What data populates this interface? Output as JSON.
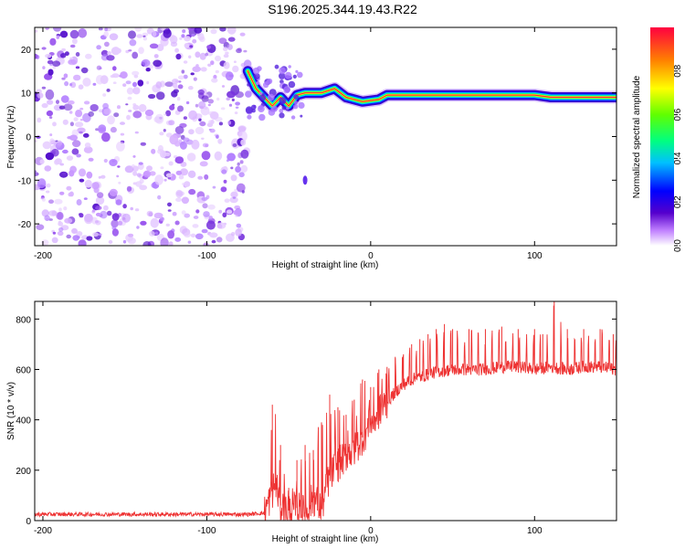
{
  "title": "S196.2025.344.19.43.R22",
  "chart_data": [
    {
      "type": "heatmap",
      "name": "spectrogram",
      "xlabel": "Height of straight line (km)",
      "ylabel": "Frequency (Hz)",
      "xlim": [
        -205,
        150
      ],
      "ylim": [
        -25,
        25
      ],
      "xticks": [
        -200,
        -100,
        0,
        100
      ],
      "yticks": [
        -20,
        -10,
        0,
        10,
        20
      ],
      "colorbar": {
        "label": "Normalized spectral amplitude",
        "range": [
          0,
          1
        ],
        "ticks": [
          0.0,
          0.2,
          0.4,
          0.6,
          0.8
        ]
      },
      "noise_region_x": [
        -205,
        -75
      ],
      "ridge": [
        {
          "x": -75,
          "y": 15
        },
        {
          "x": -70,
          "y": 11
        },
        {
          "x": -65,
          "y": 9
        },
        {
          "x": -60,
          "y": 7
        },
        {
          "x": -55,
          "y": 9
        },
        {
          "x": -50,
          "y": 7
        },
        {
          "x": -45,
          "y": 9.5
        },
        {
          "x": -40,
          "y": 10
        },
        {
          "x": -30,
          "y": 10
        },
        {
          "x": -22,
          "y": 11
        },
        {
          "x": -15,
          "y": 9
        },
        {
          "x": -5,
          "y": 8
        },
        {
          "x": 5,
          "y": 8.5
        },
        {
          "x": 10,
          "y": 9.5
        },
        {
          "x": 60,
          "y": 9.5
        },
        {
          "x": 100,
          "y": 9.5
        },
        {
          "x": 110,
          "y": 9
        },
        {
          "x": 150,
          "y": 9
        }
      ],
      "annotations": [
        {
          "x": -40,
          "y": -10,
          "label": "isolated blob"
        }
      ]
    },
    {
      "type": "line",
      "name": "snr",
      "xlabel": "Height of straight line (km)",
      "ylabel": "SNR (10 * v/v)",
      "xlim": [
        -205,
        150
      ],
      "ylim": [
        0,
        870
      ],
      "xticks": [
        -200,
        -100,
        0,
        100
      ],
      "yticks": [
        0,
        200,
        400,
        600,
        800
      ],
      "color": "#ee3333",
      "x": [
        -205,
        -100,
        -75,
        -65,
        -62,
        -58,
        -55,
        -50,
        -45,
        -40,
        -35,
        -30,
        -25,
        -20,
        -15,
        -10,
        -5,
        0,
        5,
        10,
        15,
        20,
        25,
        30,
        40,
        50,
        60,
        70,
        80,
        90,
        100,
        110,
        120,
        130,
        140,
        150
      ],
      "y": [
        25,
        25,
        25,
        30,
        80,
        150,
        60,
        40,
        50,
        30,
        90,
        50,
        180,
        220,
        260,
        280,
        330,
        380,
        430,
        470,
        510,
        540,
        560,
        570,
        590,
        600,
        600,
        600,
        610,
        610,
        600,
        610,
        600,
        610,
        610,
        600
      ],
      "spikes": [
        {
          "x": -60,
          "y": 460
        },
        {
          "x": -55,
          "y": 300
        },
        {
          "x": -50,
          "y": 130
        },
        {
          "x": -45,
          "y": 240
        },
        {
          "x": -40,
          "y": 300
        },
        {
          "x": -35,
          "y": 280
        },
        {
          "x": -30,
          "y": 390
        },
        {
          "x": -25,
          "y": 500
        },
        {
          "x": -20,
          "y": 450
        },
        {
          "x": -15,
          "y": 420
        },
        {
          "x": -10,
          "y": 480
        },
        {
          "x": -5,
          "y": 560
        },
        {
          "x": 0,
          "y": 530
        },
        {
          "x": 5,
          "y": 600
        },
        {
          "x": 10,
          "y": 610
        },
        {
          "x": 15,
          "y": 650
        },
        {
          "x": 20,
          "y": 660
        },
        {
          "x": 25,
          "y": 700
        },
        {
          "x": 30,
          "y": 720
        },
        {
          "x": 35,
          "y": 740
        },
        {
          "x": 40,
          "y": 760
        },
        {
          "x": 45,
          "y": 780
        },
        {
          "x": 50,
          "y": 760
        },
        {
          "x": 60,
          "y": 760
        },
        {
          "x": 70,
          "y": 760
        },
        {
          "x": 80,
          "y": 770
        },
        {
          "x": 90,
          "y": 760
        },
        {
          "x": 100,
          "y": 760
        },
        {
          "x": 105,
          "y": 740
        },
        {
          "x": 112,
          "y": 870
        },
        {
          "x": 120,
          "y": 760
        },
        {
          "x": 130,
          "y": 760
        },
        {
          "x": 140,
          "y": 760
        },
        {
          "x": 148,
          "y": 740
        }
      ]
    }
  ]
}
